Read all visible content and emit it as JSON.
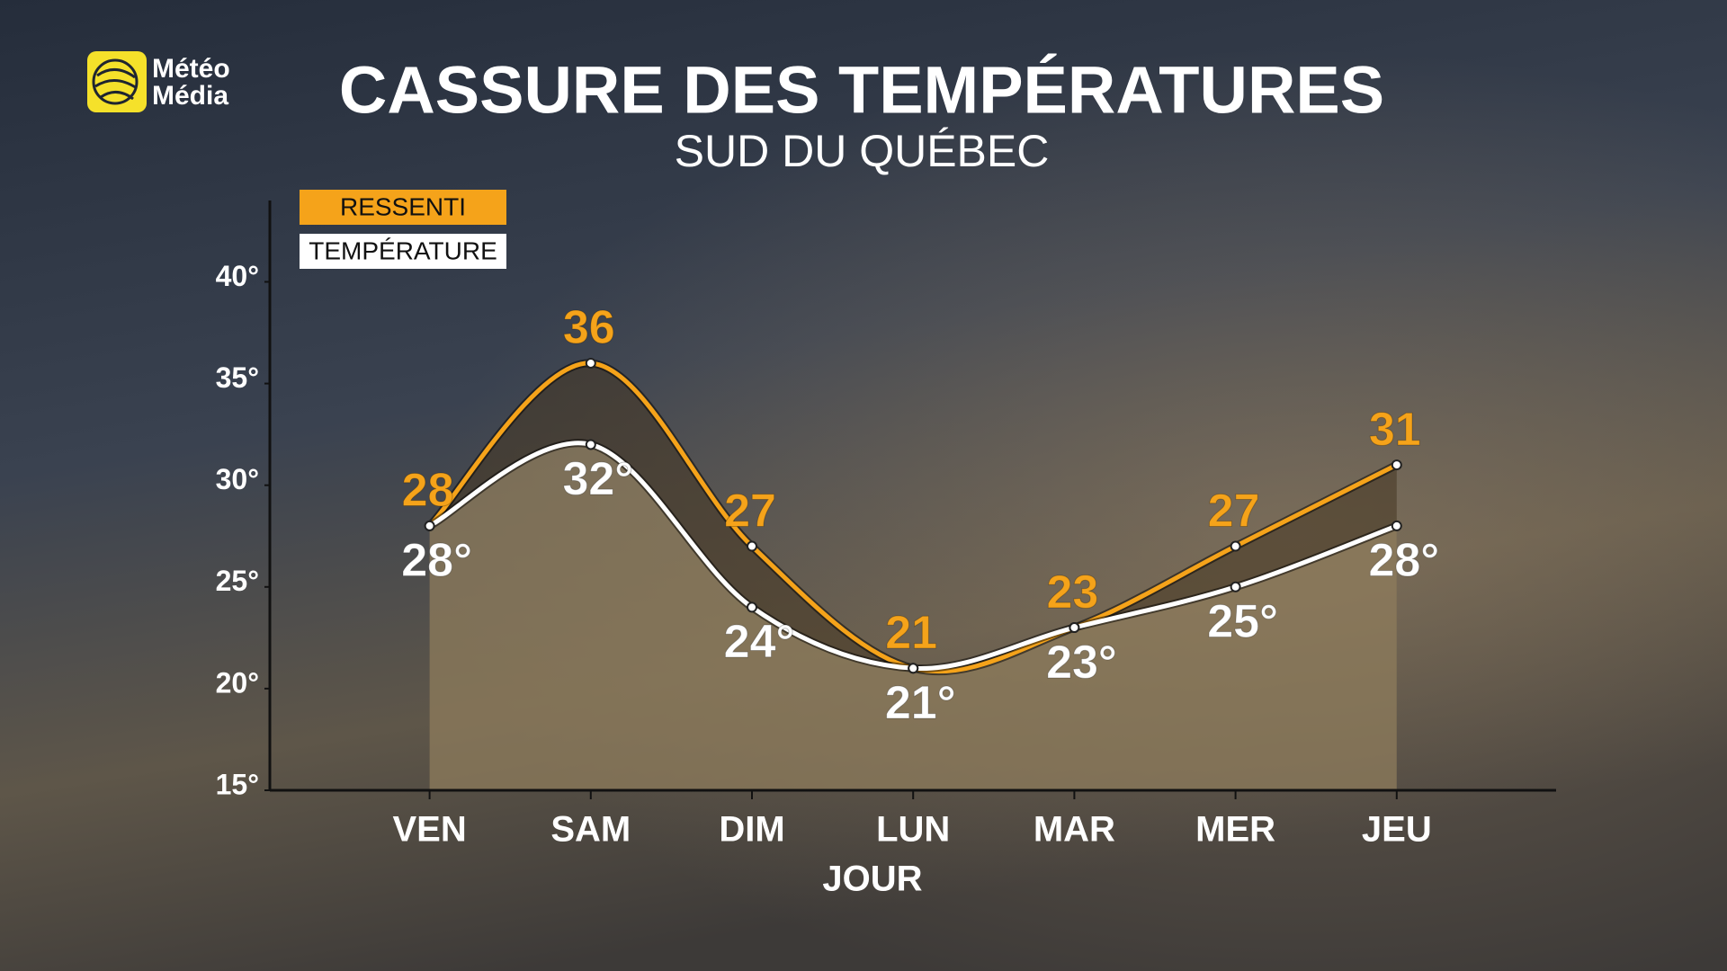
{
  "logo": {
    "lines": [
      "Météo",
      "Média"
    ]
  },
  "chart_data": {
    "type": "line",
    "title": "CASSURE DES TEMPÉRATURES",
    "subtitle": "SUD DU QUÉBEC",
    "x_label": "JOUR",
    "categories": [
      "VEN",
      "SAM",
      "DIM",
      "LUN",
      "MAR",
      "MER",
      "JEU"
    ],
    "series": [
      {
        "name": "RESSENTI",
        "color": "#f5a31a",
        "values": [
          28,
          36,
          27,
          21,
          23,
          27,
          31
        ]
      },
      {
        "name": "TEMPÉRATURE",
        "color": "#ffffff",
        "values": [
          28,
          32,
          24,
          21,
          23,
          25,
          28
        ],
        "value_labels": [
          "28°",
          "32°",
          "24°",
          "21°",
          "23°",
          "25°",
          "28°"
        ]
      }
    ],
    "ylim": [
      15,
      44
    ],
    "yticks": [
      {
        "value": 15,
        "label": "15°"
      },
      {
        "value": 20,
        "label": "20°"
      },
      {
        "value": 25,
        "label": "25°"
      },
      {
        "value": 30,
        "label": "30°"
      },
      {
        "value": 35,
        "label": "35°"
      },
      {
        "value": 40,
        "label": "40°"
      }
    ],
    "grid": false,
    "smooth": true
  }
}
